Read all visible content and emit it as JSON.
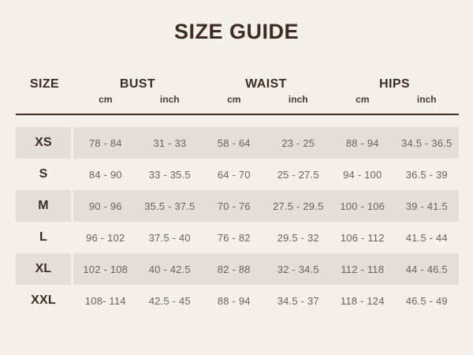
{
  "colors": {
    "page_background": "#f4efe8",
    "row_stripe": "#e3ded7",
    "heading_text": "#3e2c26",
    "measurement_text": "#6e6159",
    "header_rule": "#3e2c26"
  },
  "chart_data": {
    "type": "table",
    "title": "SIZE GUIDE",
    "size_column_header": "SIZE",
    "measure_headers": [
      "BUST",
      "WAIST",
      "HIPS"
    ],
    "unit_headers": [
      "cm",
      "inch",
      "cm",
      "inch",
      "cm",
      "inch"
    ],
    "rows": [
      {
        "size": "XS",
        "cells": [
          "78 - 84",
          "31 - 33",
          "58 - 64",
          "23 - 25",
          "88 - 94",
          "34.5 - 36.5"
        ]
      },
      {
        "size": "S",
        "cells": [
          "84 - 90",
          "33 - 35.5",
          "64 - 70",
          "25 - 27.5",
          "94 - 100",
          "36.5 - 39"
        ]
      },
      {
        "size": "M",
        "cells": [
          "90 - 96",
          "35.5 - 37.5",
          "70 - 76",
          "27.5 - 29.5",
          "100 - 106",
          "39 - 41.5"
        ]
      },
      {
        "size": "L",
        "cells": [
          "96 - 102",
          "37.5 - 40",
          "76 - 82",
          "29.5 - 32",
          "106 - 112",
          "41.5 - 44"
        ]
      },
      {
        "size": "XL",
        "cells": [
          "102 - 108",
          "40 - 42.5",
          "82 - 88",
          "32 - 34.5",
          "112 - 118",
          "44 - 46.5"
        ]
      },
      {
        "size": "XXL",
        "cells": [
          "108- 114",
          "42.5 - 45",
          "88 - 94",
          "34.5 - 37",
          "118 - 124",
          "46.5 - 49"
        ]
      }
    ]
  }
}
